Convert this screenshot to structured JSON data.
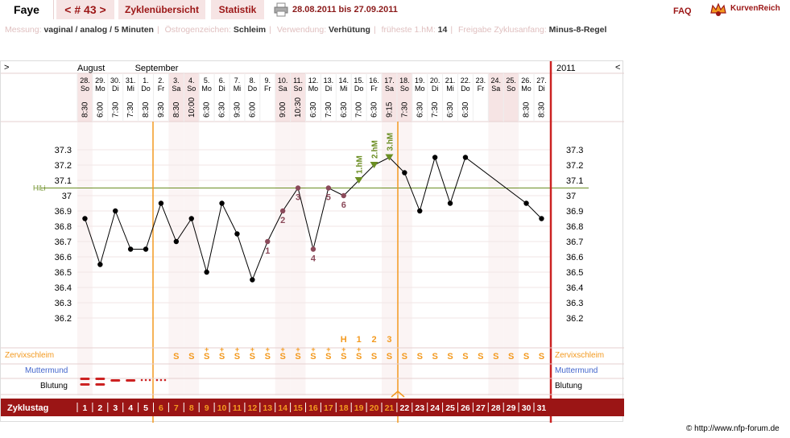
{
  "header": {
    "name": "Faye",
    "cycle": "< # 43 >",
    "tab1": "Zyklenübersicht",
    "tab2": "Statistik",
    "daterange": "28.08.2011 bis 27.09.2011",
    "faq": "FAQ",
    "logo": "KurvenReich"
  },
  "info": [
    {
      "k": "Messung:",
      "v": "vaginal / analog / 5 Minuten"
    },
    {
      "k": "Östrogenzeichen:",
      "v": "Schleim"
    },
    {
      "k": "Verwendung:",
      "v": "Verhütung"
    },
    {
      "k": "früheste 1.hM:",
      "v": "14"
    },
    {
      "k": "Freigabe Zyklusanfang:",
      "v": "Minus-8-Regel"
    }
  ],
  "colors": {
    "accent": "#9b1515",
    "orange": "#f39a20",
    "green": "#6b8e23",
    "blue": "#4466cc",
    "red": "#cc2222"
  },
  "chart_data": {
    "type": "line",
    "months": [
      "August",
      "September"
    ],
    "year": "2011",
    "nav_left": ">",
    "nav_right": "<",
    "days": [
      {
        "date": "28.",
        "wd": "So",
        "time": "8:30"
      },
      {
        "date": "29.",
        "wd": "Mo",
        "time": "6:00"
      },
      {
        "date": "30.",
        "wd": "Di",
        "time": "7:30"
      },
      {
        "date": "31.",
        "wd": "Mi",
        "time": "7:30"
      },
      {
        "date": "1.",
        "wd": "Do",
        "time": "8:30"
      },
      {
        "date": "2.",
        "wd": "Fr",
        "time": "9:30"
      },
      {
        "date": "3.",
        "wd": "Sa",
        "time": "8:30"
      },
      {
        "date": "4.",
        "wd": "So",
        "time": "10:00"
      },
      {
        "date": "5.",
        "wd": "Mo",
        "time": "6:30"
      },
      {
        "date": "6.",
        "wd": "Di",
        "time": "6:30"
      },
      {
        "date": "7.",
        "wd": "Mi",
        "time": "9:30"
      },
      {
        "date": "8.",
        "wd": "Do",
        "time": "6:00"
      },
      {
        "date": "9.",
        "wd": "Fr",
        "time": ""
      },
      {
        "date": "10.",
        "wd": "Sa",
        "time": "9:00"
      },
      {
        "date": "11.",
        "wd": "So",
        "time": "10:30"
      },
      {
        "date": "12.",
        "wd": "Mo",
        "time": "6:30"
      },
      {
        "date": "13.",
        "wd": "Di",
        "time": "7:30"
      },
      {
        "date": "14.",
        "wd": "Mi",
        "time": "6:30"
      },
      {
        "date": "15.",
        "wd": "Do",
        "time": "7:00"
      },
      {
        "date": "16.",
        "wd": "Fr",
        "time": "6:30"
      },
      {
        "date": "17.",
        "wd": "Sa",
        "time": "9:15"
      },
      {
        "date": "18.",
        "wd": "So",
        "time": "7:30"
      },
      {
        "date": "19.",
        "wd": "Mo",
        "time": "6:30"
      },
      {
        "date": "20.",
        "wd": "Di",
        "time": "7:30"
      },
      {
        "date": "21.",
        "wd": "Mi",
        "time": "6:30"
      },
      {
        "date": "22.",
        "wd": "Do",
        "time": "6:30"
      },
      {
        "date": "23.",
        "wd": "Fr",
        "time": ""
      },
      {
        "date": "24.",
        "wd": "Sa",
        "time": ""
      },
      {
        "date": "25.",
        "wd": "So",
        "time": ""
      },
      {
        "date": "26.",
        "wd": "Mo",
        "time": "8:30"
      },
      {
        "date": "27.",
        "wd": "Di",
        "time": "8:30"
      }
    ],
    "weekend_idx": [
      0,
      6,
      7,
      13,
      14,
      20,
      21,
      27,
      28
    ],
    "temps": [
      36.85,
      36.55,
      36.9,
      36.65,
      36.65,
      36.95,
      36.7,
      36.85,
      36.5,
      36.95,
      36.75,
      36.45,
      36.7,
      36.9,
      37.05,
      36.65,
      37.05,
      37.0,
      37.1,
      37.2,
      37.25,
      37.15,
      36.9,
      37.25,
      36.95,
      37.25,
      null,
      null,
      null,
      36.95,
      36.85
    ],
    "y_ticks": [
      37.3,
      37.2,
      37.1,
      37,
      36.9,
      36.8,
      36.7,
      36.6,
      36.5,
      36.4,
      36.3,
      36.2
    ],
    "ylim": [
      36.2,
      37.3
    ],
    "hili": {
      "label": "HiLi",
      "value": 37.05
    },
    "low_labels": [
      {
        "day": 12,
        "label": "1",
        "pos": "below"
      },
      {
        "day": 13,
        "label": "2",
        "pos": "below"
      },
      {
        "day": 14,
        "label": "3",
        "pos": "below"
      },
      {
        "day": 15,
        "label": "4",
        "pos": "below"
      },
      {
        "day": 16,
        "label": "5",
        "pos": "below"
      },
      {
        "day": 17,
        "label": "6",
        "pos": "below"
      }
    ],
    "high_labels": [
      {
        "day": 18,
        "label": "1.hM"
      },
      {
        "day": 19,
        "label": "2.hM"
      },
      {
        "day": 20,
        "label": "3.hM"
      }
    ],
    "mucus_eval": [
      {
        "day": 17,
        "label": "H"
      },
      {
        "day": 18,
        "label": "1"
      },
      {
        "day": 19,
        "label": "2"
      },
      {
        "day": 20,
        "label": "3"
      }
    ],
    "rows": {
      "zervix": "Zervixschleim",
      "muttermund": "Muttermund",
      "blutung": "Blutung",
      "zyklustag": "Zyklustag"
    },
    "mucus": [
      "",
      "",
      "",
      "",
      "",
      "",
      "S",
      "S",
      "S+",
      "S+",
      "S+",
      "S+",
      "S+",
      "S+",
      "S+",
      "S+",
      "S+",
      "S+",
      "S+",
      "S",
      "S",
      "S",
      "S",
      "S",
      "S",
      "S",
      "S",
      "S",
      "S",
      "S",
      "S"
    ],
    "bleeding": [
      "heavy",
      "heavy",
      "medium",
      "medium",
      "light",
      "light",
      "",
      "",
      "",
      "",
      "",
      "",
      "",
      "",
      "",
      "",
      "",
      "",
      "",
      "",
      "",
      "",
      "",
      "",
      "",
      "",
      "",
      "",
      "",
      "",
      ""
    ],
    "cycle_days": [
      "1",
      "2",
      "3",
      "4",
      "5",
      "6",
      "7",
      "8",
      "9",
      "10",
      "11",
      "12",
      "13",
      "14",
      "15",
      "16",
      "17",
      "18",
      "19",
      "20",
      "21",
      "22",
      "23",
      "24",
      "25",
      "26",
      "27",
      "28",
      "29",
      "30",
      "31"
    ],
    "orange_days": [
      5,
      6,
      7,
      8,
      9,
      10,
      11,
      12,
      13,
      14,
      15,
      16,
      17,
      18,
      19,
      20
    ],
    "copyright": "© http://www.nfp-forum.de"
  }
}
